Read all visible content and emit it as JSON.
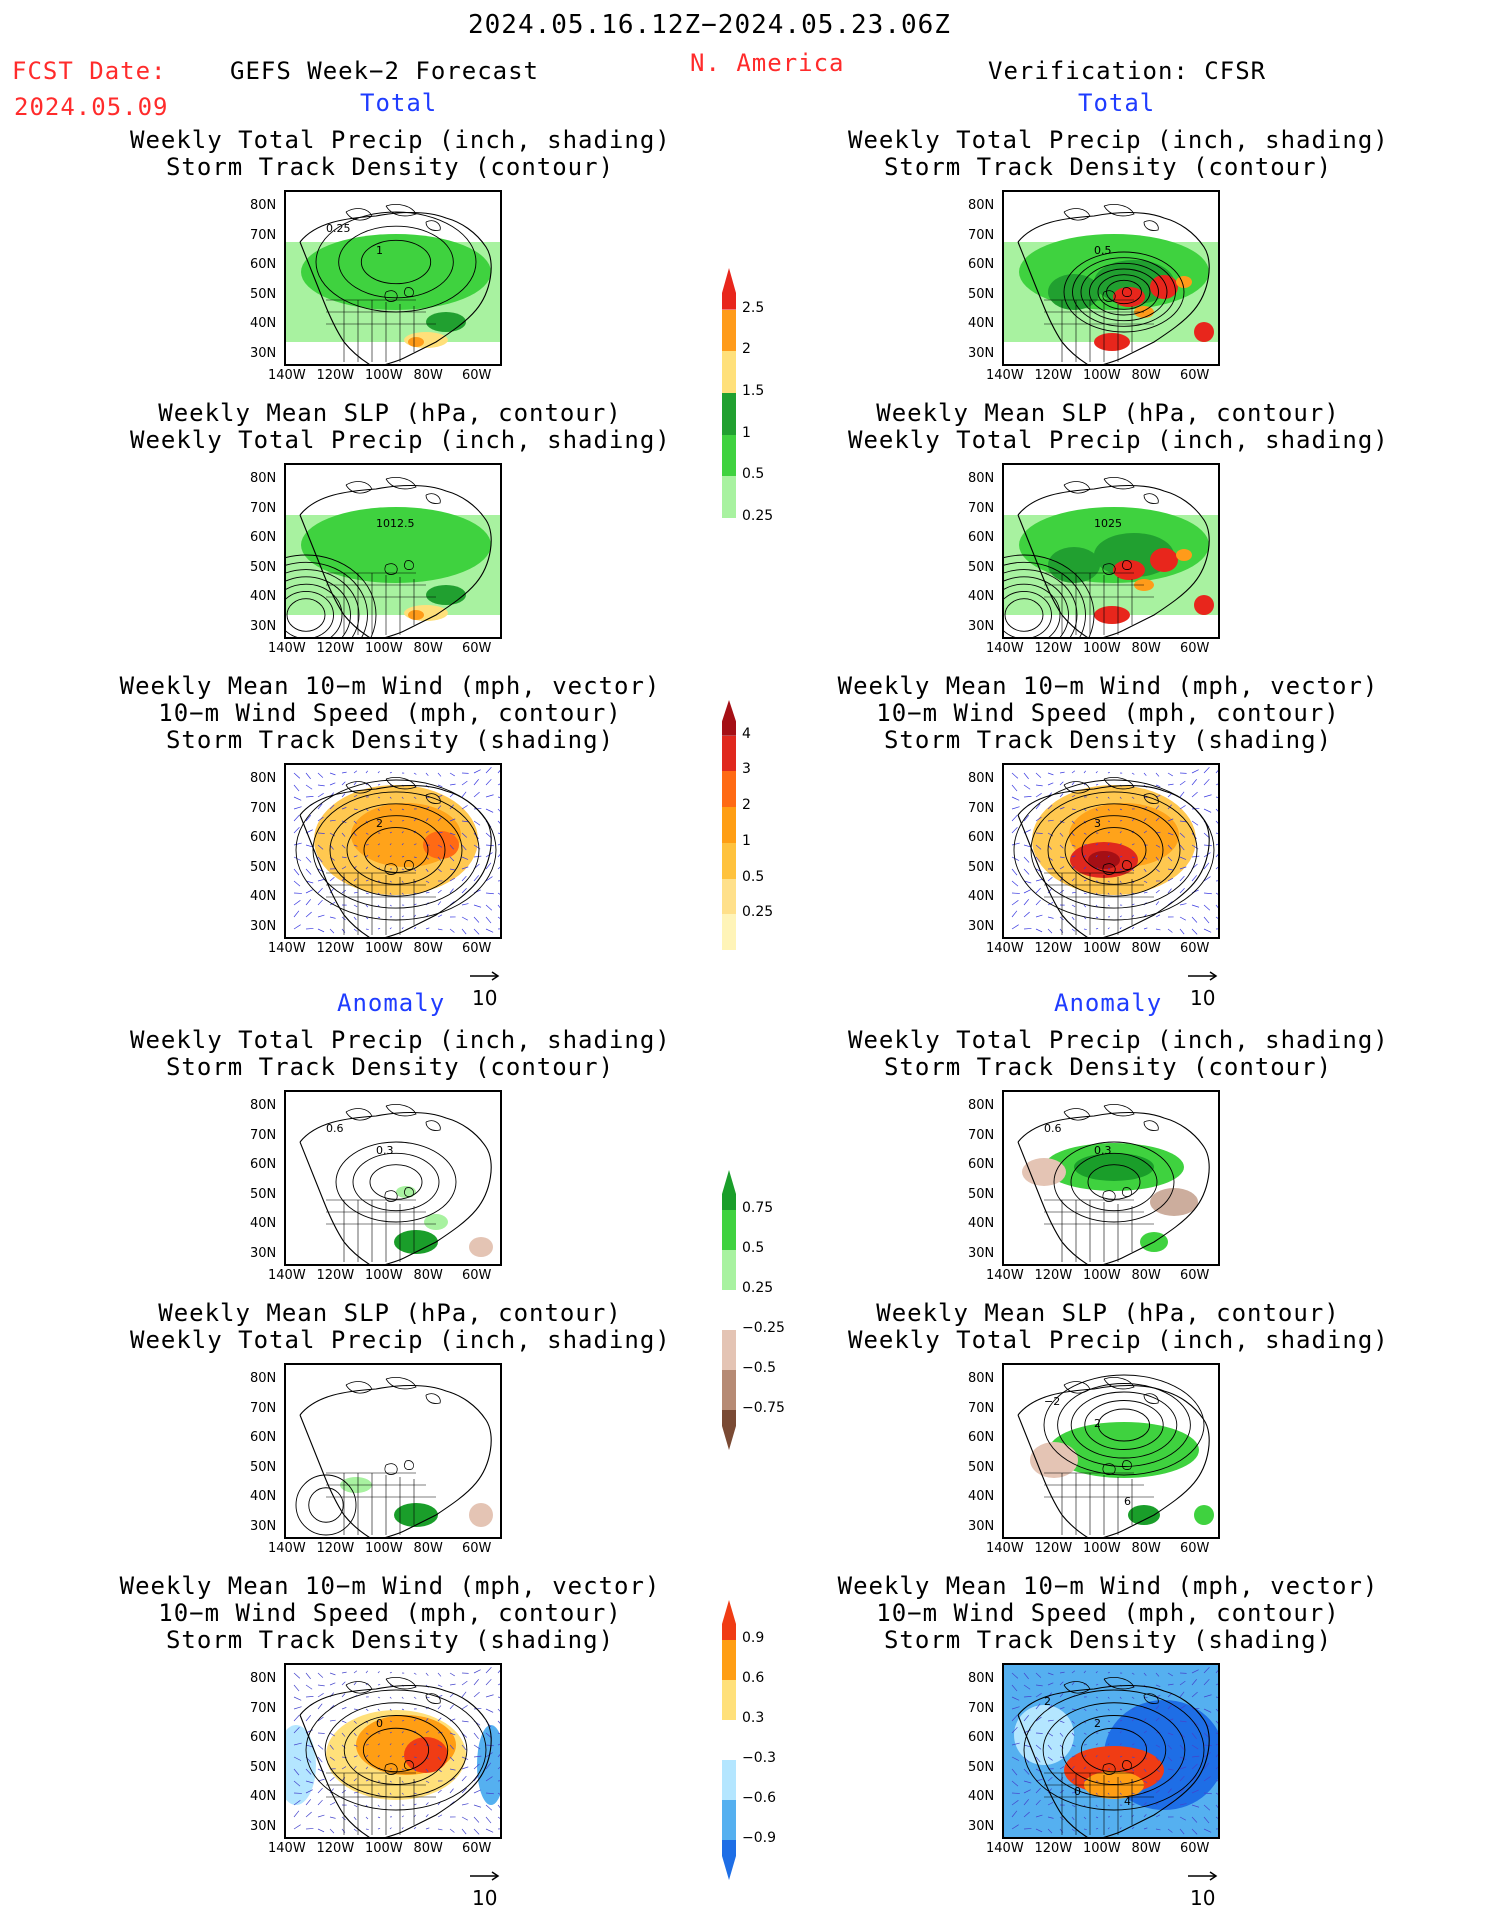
{
  "header": {
    "date_range": "2024.05.16.12Z−2024.05.23.06Z",
    "fcst_label": "FCST Date:",
    "fcst_date": "2024.05.09",
    "left_model": "GEFS Week−2 Forecast",
    "region": "N. America",
    "right_model": "Verification: CFSR"
  },
  "sections": {
    "total": "Total",
    "anomaly": "Anomaly"
  },
  "panel_titles": {
    "precip_track": "Weekly Total Precip (inch, shading)\nStorm Track Density (contour)",
    "slp_precip": "Weekly Mean SLP (hPa, contour)\nWeekly Total Precip (inch, shading)",
    "wind_track": "Weekly Mean 10−m Wind (mph, vector)\n10−m Wind Speed (mph, contour)\nStorm Track Density (shading)"
  },
  "axes": {
    "lat_ticks": [
      "80N",
      "70N",
      "60N",
      "50N",
      "40N",
      "30N"
    ],
    "lon_ticks": [
      "140W",
      "120W",
      "100W",
      "80W",
      "60W"
    ]
  },
  "vector_reference": "10",
  "map_labels": {
    "p1_left": [
      "1",
      "0.25"
    ],
    "p2_left": [
      "1012.5"
    ],
    "p3_left": [
      "2"
    ],
    "p1_right": [
      "0.5"
    ],
    "p2_right": [
      "1025"
    ],
    "p3_right": [
      "3"
    ],
    "a1_left": [
      "0.3",
      "0.6"
    ],
    "a1_right": [
      "0.3",
      "0.6"
    ],
    "a3_left": [
      "0"
    ],
    "a2_right": [
      "2",
      "−2",
      "6"
    ],
    "a3_right": [
      "2",
      "2",
      "4",
      "0"
    ]
  },
  "colorbars": {
    "precip_total": {
      "labels": [
        "2.5",
        "2",
        "1.5",
        "1",
        "0.5",
        "0.25"
      ],
      "colors": [
        "#e8261c",
        "#ff9b1a",
        "#ffe07a",
        "#21a030",
        "#3fd23f",
        "#a8f2a0"
      ]
    },
    "storm_total": {
      "labels": [
        "4",
        "3",
        "2",
        "1",
        "0.5",
        "0.25"
      ],
      "colors": [
        "#a50f15",
        "#e0281e",
        "#ff6a14",
        "#ff9e14",
        "#ffc23d",
        "#ffe08a",
        "#fff4b8"
      ]
    },
    "precip_anom": {
      "labels": [
        "0.75",
        "0.5",
        "0.25",
        "−0.25",
        "−0.5",
        "−0.75"
      ],
      "colors": [
        "#1a9e2a",
        "#3fd23f",
        "#a8f2a0",
        "#ffffff",
        "#e4c4b4",
        "#b68a74",
        "#7a4a34"
      ]
    },
    "storm_anom": {
      "labels": [
        "0.9",
        "0.6",
        "0.3",
        "−0.3",
        "−0.6",
        "−0.9"
      ],
      "colors": [
        "#f03c14",
        "#ff9e14",
        "#ffe07a",
        "#ffffff",
        "#b4e6ff",
        "#55b0f0",
        "#1e6ee6"
      ]
    }
  }
}
